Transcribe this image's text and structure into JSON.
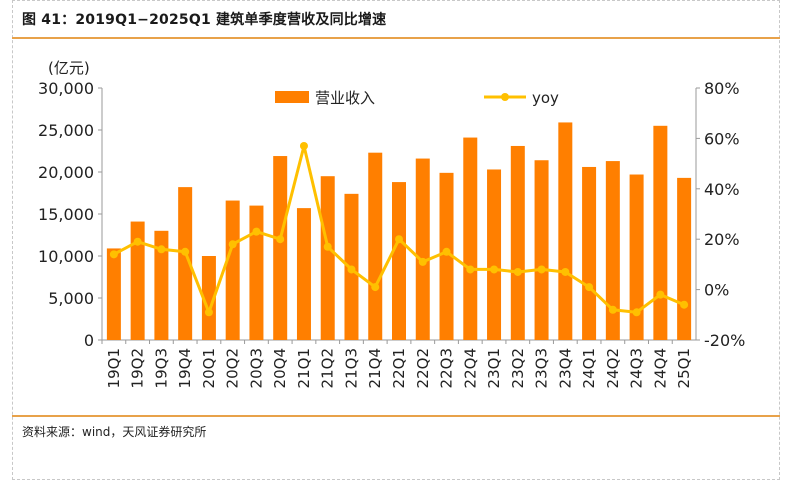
{
  "title": "图 41：2019Q1−2025Q1 建筑单季度营收及同比增速",
  "source": "资料来源：wind，天风证券研究所",
  "colors": {
    "bar": "#ff7f00",
    "line": "#ffc000",
    "rule": "#e8a24a"
  },
  "chart_data": {
    "type": "bar",
    "y_unit_label": "(亿元)",
    "ylim": [
      0,
      30000
    ],
    "y2lim": [
      -20,
      80
    ],
    "y_ticks": [
      "0",
      "5,000",
      "10,000",
      "15,000",
      "20,000",
      "25,000",
      "30,000"
    ],
    "y2_ticks": [
      "-20%",
      "0%",
      "20%",
      "40%",
      "60%",
      "80%"
    ],
    "legend": [
      "营业收入",
      "yoy"
    ],
    "legend_position": "top",
    "grid": false,
    "categories": [
      "19Q1",
      "19Q2",
      "19Q3",
      "19Q4",
      "20Q1",
      "20Q2",
      "20Q3",
      "20Q4",
      "21Q1",
      "21Q2",
      "21Q3",
      "21Q4",
      "22Q1",
      "22Q2",
      "22Q3",
      "22Q4",
      "23Q1",
      "23Q2",
      "23Q3",
      "23Q4",
      "24Q1",
      "24Q2",
      "24Q3",
      "24Q4",
      "25Q1"
    ],
    "series": [
      {
        "name": "营业收入",
        "type": "bar",
        "axis": "left",
        "values": [
          10900,
          14100,
          13000,
          18200,
          10000,
          16600,
          16000,
          21900,
          15700,
          19500,
          17400,
          22300,
          18800,
          21600,
          19900,
          24100,
          20300,
          23100,
          21400,
          25900,
          20600,
          21300,
          19700,
          25500,
          19300
        ]
      },
      {
        "name": "yoy",
        "type": "line",
        "axis": "right",
        "values": [
          14,
          19,
          16,
          15,
          -9,
          18,
          23,
          20,
          57,
          17,
          8,
          1,
          20,
          11,
          15,
          8,
          8,
          7,
          8,
          7,
          1,
          -8,
          -9,
          -2,
          -6
        ]
      }
    ]
  }
}
